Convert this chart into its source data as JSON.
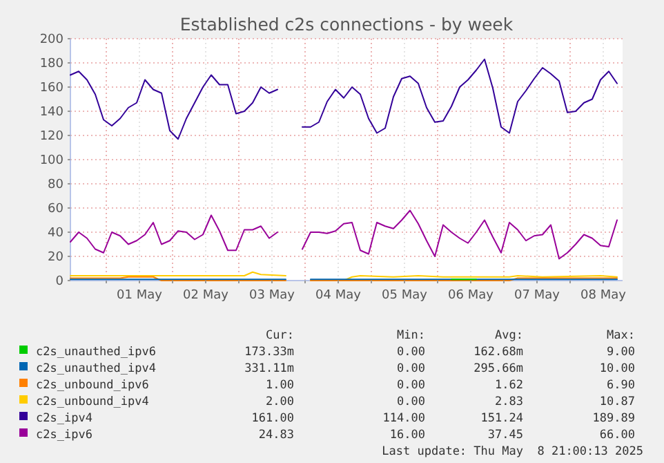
{
  "chart_data": {
    "type": "line",
    "title": "Established c2s connections - by week",
    "x": [
      "2025-04-30T11:00",
      "2025-04-30T14:00",
      "2025-04-30T17:00",
      "2025-04-30T20:00",
      "2025-04-30T23:00",
      "2025-05-01T02:00",
      "2025-05-01T05:00",
      "2025-05-01T08:00",
      "2025-05-01T11:00",
      "2025-05-01T14:00",
      "2025-05-01T17:00",
      "2025-05-01T20:00",
      "2025-05-01T23:00",
      "2025-05-02T02:00",
      "2025-05-02T05:00",
      "2025-05-02T08:00",
      "2025-05-02T11:00",
      "2025-05-02T14:00",
      "2025-05-02T17:00",
      "2025-05-02T20:00",
      "2025-05-02T23:00",
      "2025-05-03T02:00",
      "2025-05-03T05:00",
      "2025-05-03T08:00",
      "2025-05-03T11:00",
      "2025-05-03T14:00",
      "2025-05-03T17:00",
      "2025-05-03T20:00",
      "2025-05-03T23:00",
      "2025-05-04T02:00",
      "2025-05-04T05:00",
      "2025-05-04T08:00",
      "2025-05-04T11:00",
      "2025-05-04T14:00",
      "2025-05-04T17:00",
      "2025-05-04T20:00",
      "2025-05-04T23:00",
      "2025-05-05T02:00",
      "2025-05-05T05:00",
      "2025-05-05T08:00",
      "2025-05-05T11:00",
      "2025-05-05T14:00",
      "2025-05-05T17:00",
      "2025-05-05T20:00",
      "2025-05-05T23:00",
      "2025-05-06T02:00",
      "2025-05-06T05:00",
      "2025-05-06T08:00",
      "2025-05-06T11:00",
      "2025-05-06T14:00",
      "2025-05-06T17:00",
      "2025-05-06T20:00",
      "2025-05-06T23:00",
      "2025-05-07T02:00",
      "2025-05-07T05:00",
      "2025-05-07T08:00",
      "2025-05-07T11:00",
      "2025-05-07T14:00",
      "2025-05-07T17:00",
      "2025-05-07T20:00",
      "2025-05-07T23:00",
      "2025-05-08T02:00",
      "2025-05-08T05:00",
      "2025-05-08T08:00",
      "2025-05-08T11:00",
      "2025-05-08T14:00",
      "2025-05-08T17:00"
    ],
    "xlim": [
      "2025-04-30T11:00",
      "2025-05-08T19:00"
    ],
    "xticks": [
      {
        "value": "2025-05-01T00:00",
        "label": null
      },
      {
        "value": "2025-05-01T12:00",
        "label": "01 May"
      },
      {
        "value": "2025-05-02T00:00",
        "label": null
      },
      {
        "value": "2025-05-02T12:00",
        "label": "02 May"
      },
      {
        "value": "2025-05-03T00:00",
        "label": null
      },
      {
        "value": "2025-05-03T12:00",
        "label": "03 May"
      },
      {
        "value": "2025-05-04T00:00",
        "label": null
      },
      {
        "value": "2025-05-04T12:00",
        "label": "04 May"
      },
      {
        "value": "2025-05-05T00:00",
        "label": null
      },
      {
        "value": "2025-05-05T12:00",
        "label": "05 May"
      },
      {
        "value": "2025-05-06T00:00",
        "label": null
      },
      {
        "value": "2025-05-06T12:00",
        "label": "06 May"
      },
      {
        "value": "2025-05-07T00:00",
        "label": null
      },
      {
        "value": "2025-05-07T12:00",
        "label": "07 May"
      },
      {
        "value": "2025-05-08T00:00",
        "label": null
      },
      {
        "value": "2025-05-08T12:00",
        "label": "08 May"
      }
    ],
    "ylim": [
      0,
      200
    ],
    "yticks": [
      0,
      20,
      40,
      60,
      80,
      100,
      120,
      140,
      160,
      180,
      200
    ],
    "grid": true,
    "legend": "bottom",
    "series": [
      {
        "name": "c2s_unauthed_ipv6",
        "color": "#00cc00",
        "x": [
          "2025-05-06T05:00",
          "2025-05-06T14:00"
        ],
        "values": [
          1,
          1
        ]
      },
      {
        "name": "c2s_unauthed_ipv4",
        "color": "#0066b3",
        "x": [
          "2025-04-30T11:00",
          "2025-05-03T17:00",
          "2025-05-03T23:00",
          "2025-05-04T02:00",
          "2025-05-08T17:00"
        ],
        "values": [
          1,
          1,
          null,
          1,
          1
        ]
      },
      {
        "name": "c2s_unbound_ipv6",
        "color": "#ff8000",
        "x": [
          "2025-04-30T11:00",
          "2025-05-01T05:00",
          "2025-05-01T08:00",
          "2025-05-01T17:00",
          "2025-05-01T20:00",
          "2025-05-03T17:00",
          "2025-05-03T23:00",
          "2025-05-04T02:00",
          "2025-05-07T02:00",
          "2025-05-07T05:00",
          "2025-05-08T17:00"
        ],
        "values": [
          2,
          2,
          3,
          3,
          0,
          0,
          null,
          0,
          0,
          2,
          2
        ]
      },
      {
        "name": "c2s_unbound_ipv4",
        "color": "#ffcc00",
        "x": [
          "2025-04-30T11:00",
          "2025-05-01T11:00",
          "2025-05-02T11:00",
          "2025-05-03T02:00",
          "2025-05-03T05:00",
          "2025-05-03T08:00",
          "2025-05-03T17:00",
          "2025-05-03T23:00",
          "2025-05-04T02:00",
          "2025-05-04T14:00",
          "2025-05-04T17:00",
          "2025-05-04T20:00",
          "2025-05-05T08:00",
          "2025-05-05T17:00",
          "2025-05-06T02:00",
          "2025-05-06T17:00",
          "2025-05-07T02:00",
          "2025-05-07T05:00",
          "2025-05-07T14:00",
          "2025-05-08T11:00",
          "2025-05-08T17:00"
        ],
        "values": [
          4,
          4,
          4,
          4,
          7,
          5,
          4,
          null,
          0,
          0,
          3,
          4,
          3,
          4,
          3,
          3,
          3,
          4,
          3,
          4,
          3
        ]
      },
      {
        "name": "c2s_ipv4",
        "color": "#330099",
        "values": [
          170,
          173,
          166,
          154,
          133,
          128,
          134,
          143,
          147,
          166,
          158,
          155,
          124,
          117,
          134,
          147,
          160,
          170,
          162,
          162,
          138,
          140,
          147,
          160,
          155,
          158,
          null,
          null,
          127,
          127,
          131,
          148,
          158,
          151,
          160,
          154,
          134,
          122,
          126,
          152,
          167,
          169,
          163,
          143,
          131,
          132,
          144,
          160,
          166,
          174,
          183,
          159,
          127,
          122,
          148,
          157,
          167,
          176,
          171,
          165,
          139,
          140,
          147,
          150,
          166,
          173,
          163
        ]
      },
      {
        "name": "c2s_ipv6",
        "color": "#990099",
        "values": [
          32,
          40,
          35,
          26,
          23,
          40,
          37,
          30,
          33,
          38,
          48,
          30,
          33,
          41,
          40,
          34,
          38,
          54,
          41,
          25,
          25,
          42,
          42,
          45,
          35,
          40,
          null,
          null,
          26,
          40,
          40,
          39,
          41,
          47,
          48,
          25,
          22,
          48,
          45,
          43,
          50,
          58,
          47,
          33,
          20,
          46,
          40,
          35,
          31,
          40,
          50,
          36,
          23,
          48,
          42,
          33,
          37,
          38,
          46,
          18,
          23,
          30,
          38,
          35,
          29,
          28,
          50
        ]
      }
    ],
    "annotations": [
      "Cur:",
      "Min:",
      "Avg:",
      "Max:",
      "173.33m",
      "0.00",
      "162.68m",
      "9.00",
      "331.11m",
      "0.00",
      "295.66m",
      "10.00",
      "1.00",
      "0.00",
      "1.62",
      "6.90",
      "2.00",
      "0.00",
      "2.83",
      "10.87",
      "161.00",
      "114.00",
      "151.24",
      "189.89",
      "24.83",
      "16.00",
      "37.45",
      "66.00",
      "Last update: Thu May  8 21:00:13 2025"
    ]
  }
}
